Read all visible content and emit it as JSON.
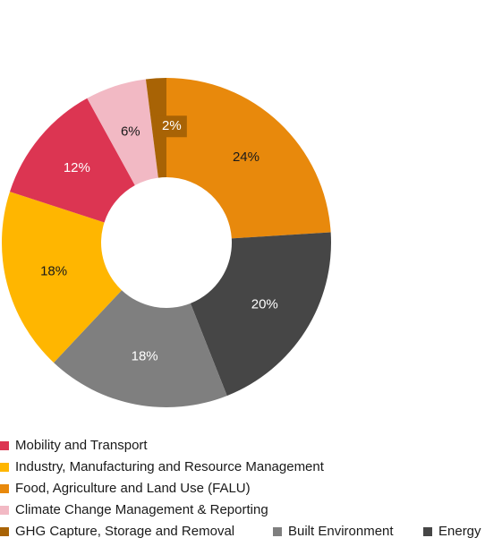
{
  "chart_data": {
    "type": "donut",
    "categories": [
      "Food, Agriculture and Land Use (FALU)",
      "Energy",
      "Built Environment",
      "Industry, Manufacturing and Resource Management",
      "Mobility and Transport",
      "Climate Change Management & Reporting",
      "GHG Capture, Storage and Removal"
    ],
    "values": [
      24,
      20,
      18,
      18,
      12,
      6,
      2
    ],
    "value_labels": [
      "24%",
      "20%",
      "18%",
      "18%",
      "12%",
      "6%",
      "2%"
    ],
    "colors": [
      "#e8890c",
      "#464646",
      "#7f7f7f",
      "#ffb600",
      "#dc3552",
      "#f2b9c4",
      "#a86305"
    ]
  }
}
